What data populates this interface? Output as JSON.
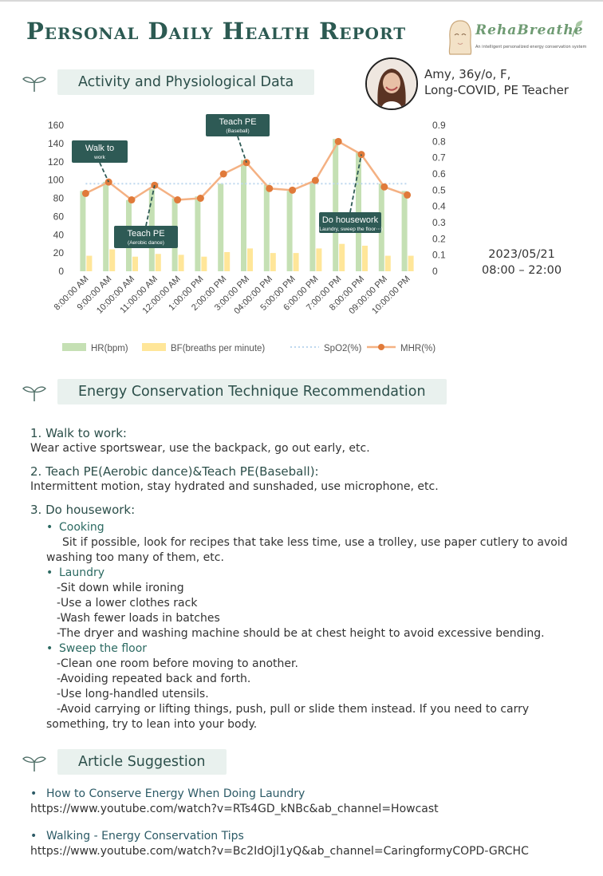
{
  "title": "Personal Daily Health Report",
  "logo": {
    "name": "RehaBreathe",
    "tagline": "An intelligent personalized energy conservation system"
  },
  "sections": {
    "activity": "Activity and Physiological Data",
    "recommendation": "Energy Conservation Technique  Recommendation",
    "articles": "Article Suggestion"
  },
  "profile": {
    "line1": "Amy, 36y/o, F,",
    "line2": "Long-COVID, PE Teacher"
  },
  "date": {
    "day": "2023/05/21",
    "range": "08:00 – 22:00"
  },
  "chart_data": {
    "type": "bar",
    "categories": [
      "8:00:00 AM",
      "9:00:00 AM",
      "10:00:00 AM",
      "11:00:00 AM",
      "12:00:00 AM",
      "1:00:00 PM",
      "2:00:00 PM",
      "3:00:00 PM",
      "04:00:00 PM",
      "5:00:00 PM",
      "6:00:00 PM",
      "7:00:00 PM",
      "8:00:00 PM",
      "09:00:00 PM",
      "10:00:00 PM"
    ],
    "y_left": {
      "ticks": [
        "0",
        "20",
        "40",
        "60",
        "80",
        "100",
        "120",
        "140",
        "160"
      ],
      "ylim": [
        0,
        160
      ]
    },
    "y_right": {
      "ticks": [
        "0",
        "0.1",
        "0.2",
        "0.3",
        "0.4",
        "0.5",
        "0.6",
        "0.7",
        "0.8",
        "0.9"
      ],
      "ylim": [
        0,
        0.9
      ]
    },
    "series": [
      {
        "name": "HR(bpm)",
        "type": "bar",
        "axis": "left",
        "color": "#c5e0b4",
        "values": [
          88,
          98,
          78,
          90,
          80,
          82,
          96,
          122,
          95,
          88,
          98,
          145,
          130,
          96,
          88
        ]
      },
      {
        "name": "BF(breaths per minute)",
        "type": "bar",
        "axis": "left",
        "color": "#ffe699",
        "values": [
          17,
          24,
          16,
          19,
          18,
          16,
          21,
          25,
          20,
          20,
          25,
          30,
          28,
          17,
          17
        ]
      },
      {
        "name": "SpO2(%)",
        "type": "dotted-line",
        "axis": "right",
        "color": "#bdd7ee",
        "values": [
          0.54,
          0.54,
          0.54,
          0.54,
          0.54,
          0.54,
          0.54,
          0.54,
          0.54,
          0.54,
          0.54,
          0.54,
          0.54,
          0.54,
          0.54
        ]
      },
      {
        "name": "MHR(%)",
        "type": "line",
        "axis": "right",
        "color": "#e07a3a",
        "line_color": "#f4b183",
        "values": [
          0.48,
          0.55,
          0.44,
          0.53,
          0.44,
          0.45,
          0.6,
          0.67,
          0.51,
          0.5,
          0.56,
          0.8,
          0.72,
          0.52,
          0.47
        ]
      }
    ],
    "annotations": [
      {
        "label": "Walk to",
        "sub": "work",
        "category_index": 1
      },
      {
        "label": "Teach PE",
        "sub": "(Aerobic dance)",
        "category_index": 2
      },
      {
        "label": "Teach PE",
        "sub": "(Baseball)",
        "category_index": 7
      },
      {
        "label": "Do housework",
        "sub": "(Laundry, sweep the floor⋯)",
        "category_index": 12
      }
    ],
    "legend": "bottom"
  },
  "recommendations": {
    "item1_title": "1. Walk to work:",
    "item1_text": "Wear active sportswear, use the backpack, go out early, etc.",
    "item2_title": "2. Teach PE(Aerobic dance)&Teach PE(Baseball):",
    "item2_text": "Intermittent motion, stay hydrated and sunshaded, use microphone, etc.",
    "item3_title": "3. Do housework:",
    "cooking_title": "Cooking",
    "cooking_text": "Sit if possible, look for recipes that take less time, use a trolley, use paper cutlery to avoid washing too many of them, etc.",
    "laundry_title": "Laundry",
    "laundry_items": [
      "-Sit down while ironing",
      "-Use a lower clothes rack",
      "-Wash fewer loads in batches",
      "-The dryer and washing machine should be at chest height to avoid excessive bending."
    ],
    "sweep_title": "Sweep the floor",
    "sweep_items": [
      "-Clean one room before moving to another.",
      "-Avoiding repeated back and forth.",
      "-Use long-handled utensils."
    ],
    "sweep_last": "-Avoid carrying or lifting things, push, pull or slide them instead. If you need to carry something, try to lean into your body."
  },
  "articles": [
    {
      "title": "How to Conserve Energy When Doing Laundry",
      "url": "https://www.youtube.com/watch?v=RTs4GD_kNBc&ab_channel=Howcast"
    },
    {
      "title": "Walking - Energy Conservation Tips",
      "url": "https://www.youtube.com/watch?v=Bc2IdOjl1yQ&ab_channel=CaringformyCOPD-GRCHC"
    }
  ],
  "bullet": "•"
}
